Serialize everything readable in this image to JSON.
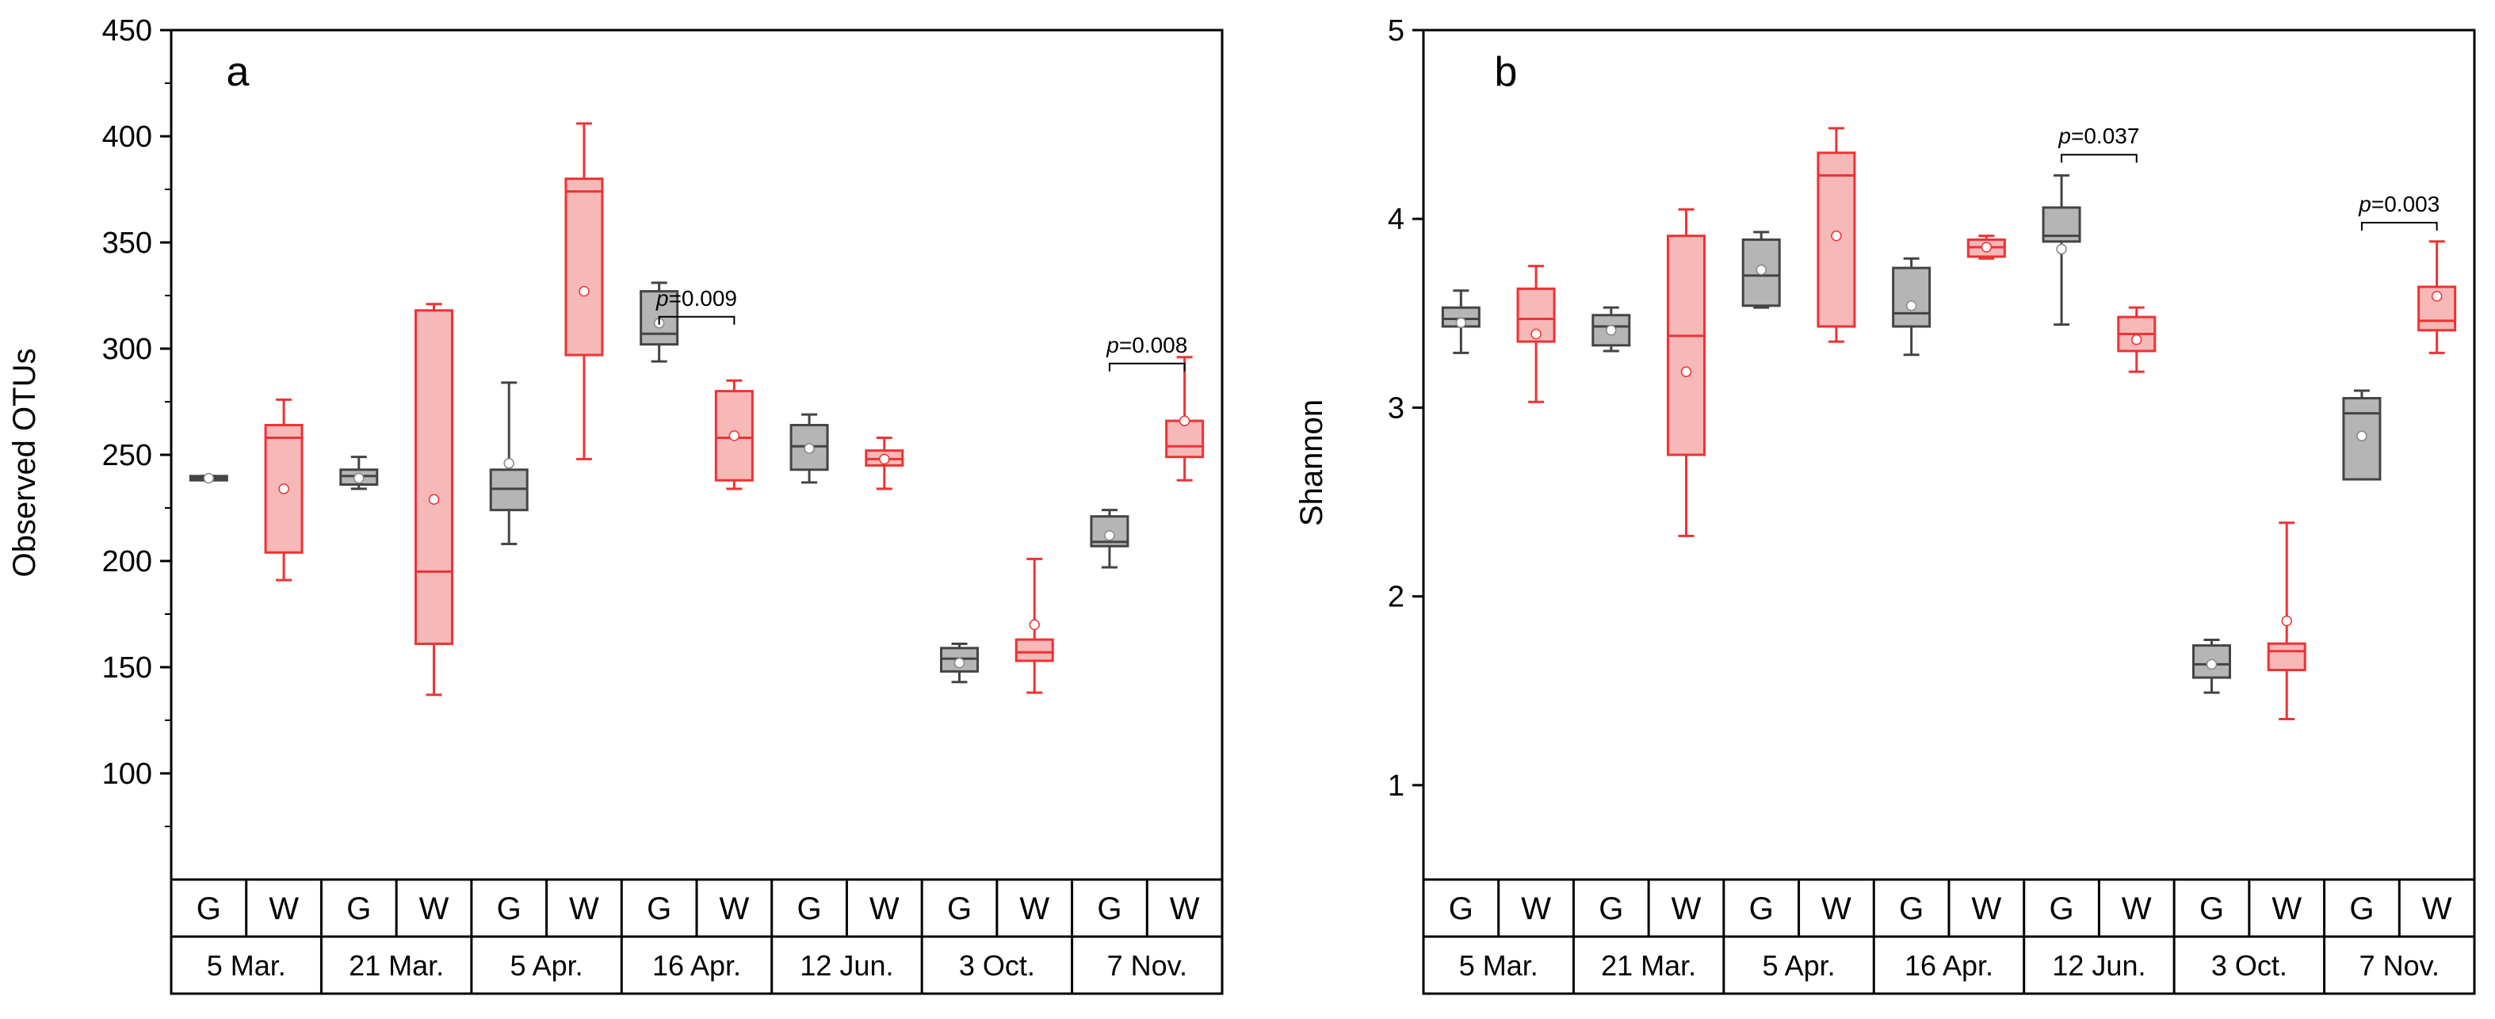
{
  "chart_data": [
    {
      "type": "box",
      "panel_label": "a",
      "ylabel": "Observed OTUs",
      "ylim": [
        50,
        450
      ],
      "yticks": [
        "100",
        "150",
        "200",
        "250",
        "300",
        "350",
        "400",
        "450"
      ],
      "groups": [
        "G",
        "W"
      ],
      "dates": [
        "5 Mar.",
        "21 Mar.",
        "5 Apr.",
        "16 Apr.",
        "12 Jun.",
        "3 Oct.",
        "7 Nov."
      ],
      "boxes": [
        {
          "date": "5 Mar.",
          "group": "G",
          "min": 238,
          "q1": 238,
          "median": 239,
          "q3": 240,
          "max": 240,
          "mean": 239
        },
        {
          "date": "5 Mar.",
          "group": "W",
          "min": 191,
          "q1": 204,
          "median": 258,
          "q3": 264,
          "max": 276,
          "mean": 234
        },
        {
          "date": "21 Mar.",
          "group": "G",
          "min": 234,
          "q1": 236,
          "median": 240,
          "q3": 243,
          "max": 249,
          "mean": 239
        },
        {
          "date": "21 Mar.",
          "group": "W",
          "min": 137,
          "q1": 161,
          "median": 195,
          "q3": 318,
          "max": 321,
          "mean": 229
        },
        {
          "date": "5 Apr.",
          "group": "G",
          "min": 208,
          "q1": 224,
          "median": 234,
          "q3": 243,
          "max": 284,
          "mean": 246
        },
        {
          "date": "5 Apr.",
          "group": "W",
          "min": 248,
          "q1": 297,
          "median": 374,
          "q3": 380,
          "max": 406,
          "mean": 327
        },
        {
          "date": "16 Apr.",
          "group": "G",
          "min": 294,
          "q1": 302,
          "median": 307,
          "q3": 327,
          "max": 331,
          "mean": 312
        },
        {
          "date": "16 Apr.",
          "group": "W",
          "min": 234,
          "q1": 238,
          "median": 258,
          "q3": 280,
          "max": 285,
          "mean": 259
        },
        {
          "date": "12 Jun.",
          "group": "G",
          "min": 237,
          "q1": 243,
          "median": 254,
          "q3": 264,
          "max": 269,
          "mean": 253
        },
        {
          "date": "12 Jun.",
          "group": "W",
          "min": 234,
          "q1": 245,
          "median": 248,
          "q3": 252,
          "max": 258,
          "mean": 248
        },
        {
          "date": "3 Oct.",
          "group": "G",
          "min": 143,
          "q1": 148,
          "median": 154,
          "q3": 159,
          "max": 161,
          "mean": 152
        },
        {
          "date": "3 Oct.",
          "group": "W",
          "min": 138,
          "q1": 153,
          "median": 157,
          "q3": 163,
          "max": 201,
          "mean": 170
        },
        {
          "date": "7 Nov.",
          "group": "G",
          "min": 197,
          "q1": 207,
          "median": 209,
          "q3": 221,
          "max": 224,
          "mean": 212
        },
        {
          "date": "7 Nov.",
          "group": "W",
          "min": 238,
          "q1": 249,
          "median": 254,
          "q3": 266,
          "max": 296,
          "mean": 266
        }
      ],
      "annotations": [
        {
          "date": "16 Apr.",
          "prefix": "p",
          "text": "=0.009",
          "y": 315
        },
        {
          "date": "7 Nov.",
          "prefix": "p",
          "text": "=0.008",
          "y": 293
        }
      ]
    },
    {
      "type": "box",
      "panel_label": "b",
      "ylabel": "Shannon",
      "ylim": [
        0.5,
        5
      ],
      "yticks": [
        "1",
        "2",
        "3",
        "4",
        "5"
      ],
      "groups": [
        "G",
        "W"
      ],
      "dates": [
        "5 Mar.",
        "21 Mar.",
        "5 Apr.",
        "16 Apr.",
        "12 Jun.",
        "3 Oct.",
        "7 Nov."
      ],
      "boxes": [
        {
          "date": "5 Mar.",
          "group": "G",
          "min": 3.29,
          "q1": 3.43,
          "median": 3.47,
          "q3": 3.53,
          "max": 3.62,
          "mean": 3.45
        },
        {
          "date": "5 Mar.",
          "group": "W",
          "min": 3.03,
          "q1": 3.35,
          "median": 3.47,
          "q3": 3.63,
          "max": 3.75,
          "mean": 3.39
        },
        {
          "date": "21 Mar.",
          "group": "G",
          "min": 3.3,
          "q1": 3.33,
          "median": 3.43,
          "q3": 3.49,
          "max": 3.53,
          "mean": 3.41
        },
        {
          "date": "21 Mar.",
          "group": "W",
          "min": 2.32,
          "q1": 2.75,
          "median": 3.38,
          "q3": 3.91,
          "max": 4.05,
          "mean": 3.19
        },
        {
          "date": "5 Apr.",
          "group": "G",
          "min": 3.53,
          "q1": 3.54,
          "median": 3.7,
          "q3": 3.89,
          "max": 3.93,
          "mean": 3.73
        },
        {
          "date": "5 Apr.",
          "group": "W",
          "min": 3.35,
          "q1": 3.43,
          "median": 4.23,
          "q3": 4.35,
          "max": 4.48,
          "mean": 3.91
        },
        {
          "date": "16 Apr.",
          "group": "G",
          "min": 3.28,
          "q1": 3.43,
          "median": 3.5,
          "q3": 3.74,
          "max": 3.79,
          "mean": 3.54
        },
        {
          "date": "16 Apr.",
          "group": "W",
          "min": 3.79,
          "q1": 3.8,
          "median": 3.85,
          "q3": 3.89,
          "max": 3.91,
          "mean": 3.85
        },
        {
          "date": "12 Jun.",
          "group": "G",
          "min": 3.44,
          "q1": 3.88,
          "median": 3.91,
          "q3": 4.06,
          "max": 4.23,
          "mean": 3.84
        },
        {
          "date": "12 Jun.",
          "group": "W",
          "min": 3.19,
          "q1": 3.3,
          "median": 3.39,
          "q3": 3.48,
          "max": 3.53,
          "mean": 3.36
        },
        {
          "date": "3 Oct.",
          "group": "G",
          "min": 1.49,
          "q1": 1.57,
          "median": 1.64,
          "q3": 1.74,
          "max": 1.77,
          "mean": 1.64
        },
        {
          "date": "3 Oct.",
          "group": "W",
          "min": 1.35,
          "q1": 1.61,
          "median": 1.71,
          "q3": 1.75,
          "max": 2.39,
          "mean": 1.87
        },
        {
          "date": "7 Nov.",
          "group": "G",
          "min": 2.62,
          "q1": 2.62,
          "median": 2.97,
          "q3": 3.05,
          "max": 3.09,
          "mean": 2.85
        },
        {
          "date": "7 Nov.",
          "group": "W",
          "min": 3.29,
          "q1": 3.41,
          "median": 3.46,
          "q3": 3.64,
          "max": 3.88,
          "mean": 3.59
        }
      ],
      "annotations": [
        {
          "date": "12 Jun.",
          "prefix": "p",
          "text": "=0.037",
          "y": 4.34
        },
        {
          "date": "7 Nov.",
          "prefix": "p",
          "text": "=0.003",
          "y": 3.98
        }
      ]
    }
  ],
  "colors": {
    "G_fill": "#b5b5b5",
    "G_stroke": "#444444",
    "W_fill": "#f7b8b8",
    "W_stroke": "#ee3333",
    "axis": "#000000"
  }
}
